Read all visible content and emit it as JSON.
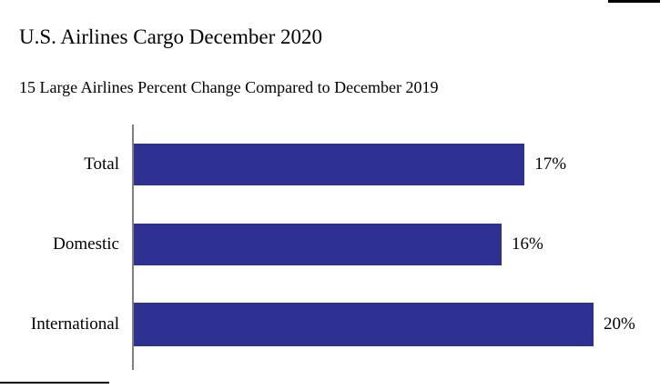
{
  "chart_data": {
    "type": "bar",
    "orientation": "horizontal",
    "title": "U.S. Airlines Cargo December 2020",
    "subtitle": "15 Large Airlines Percent Change Compared to December 2019",
    "categories": [
      "Total",
      "Domestic",
      "International"
    ],
    "values": [
      17,
      16,
      20
    ],
    "value_labels": [
      "17%",
      "16%",
      "20%"
    ],
    "unit": "percent change vs December 2019",
    "xlim": [
      0,
      20
    ],
    "grid": false,
    "legend": false,
    "data_labels_position": "right-of-bar",
    "bar_color": "#2e3192",
    "axis_color": "#7f7f7f",
    "text_color": "#000000"
  }
}
